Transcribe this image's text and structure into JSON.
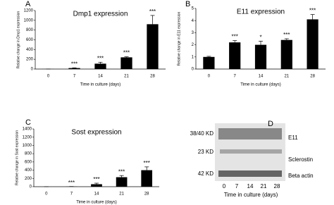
{
  "chart_data": [
    {
      "type": "bar",
      "panel": "A",
      "title": "Dmp1 expression",
      "y_label": "Relative change in Dmp1 expression",
      "x_label": "Time in culture (days)",
      "categories": [
        "0",
        "7",
        "14",
        "21",
        "28"
      ],
      "values": [
        1,
        20,
        110,
        240,
        920
      ],
      "errors": [
        0,
        5,
        30,
        12,
        180
      ],
      "annotations": [
        null,
        "***",
        "***",
        "***",
        "***"
      ],
      "color": "#000000",
      "ylim": [
        0,
        1200
      ],
      "yticks": [
        0,
        200,
        400,
        600,
        800,
        1000,
        1200
      ]
    },
    {
      "type": "bar",
      "panel": "B",
      "title": "E11 expression",
      "y_label": "Relative change in E11 expression",
      "x_label": "Time in culture (days)",
      "categories": [
        "0",
        "7",
        "14",
        "21",
        "28"
      ],
      "values": [
        1,
        2.2,
        2.0,
        2.4,
        4.1
      ],
      "errors": [
        0.05,
        0.15,
        0.3,
        0.1,
        0.4
      ],
      "annotations": [
        null,
        "***",
        "*",
        "***",
        "***"
      ],
      "color": "#000000",
      "ylim": [
        0,
        5
      ],
      "yticks": [
        0,
        1,
        2,
        3,
        4,
        5
      ]
    },
    {
      "type": "bar",
      "panel": "C",
      "title": "Sost expression",
      "y_label": "Relative change in Sost expression",
      "x_label": "Time in culture (days)",
      "categories": [
        "0",
        "7",
        "14",
        "21",
        "28"
      ],
      "values": [
        0,
        3,
        60,
        230,
        400
      ],
      "errors": [
        0,
        2,
        25,
        40,
        80
      ],
      "annotations": [
        null,
        "***",
        "***",
        "***",
        "***"
      ],
      "color": "#000000",
      "ylim": [
        0,
        1400
      ],
      "yticks": [
        0,
        200,
        400,
        600,
        800,
        1000,
        1200,
        1400
      ]
    }
  ],
  "blot": {
    "panel": "D",
    "size_labels": [
      "38/40 KD",
      "23 KD",
      "42 KD"
    ],
    "protein_labels": [
      "E11",
      "Sclerostin",
      "Beta actin"
    ],
    "lanes": [
      "0",
      "7",
      "14",
      "21",
      "28"
    ],
    "x_label": "Time in culture (days)"
  }
}
